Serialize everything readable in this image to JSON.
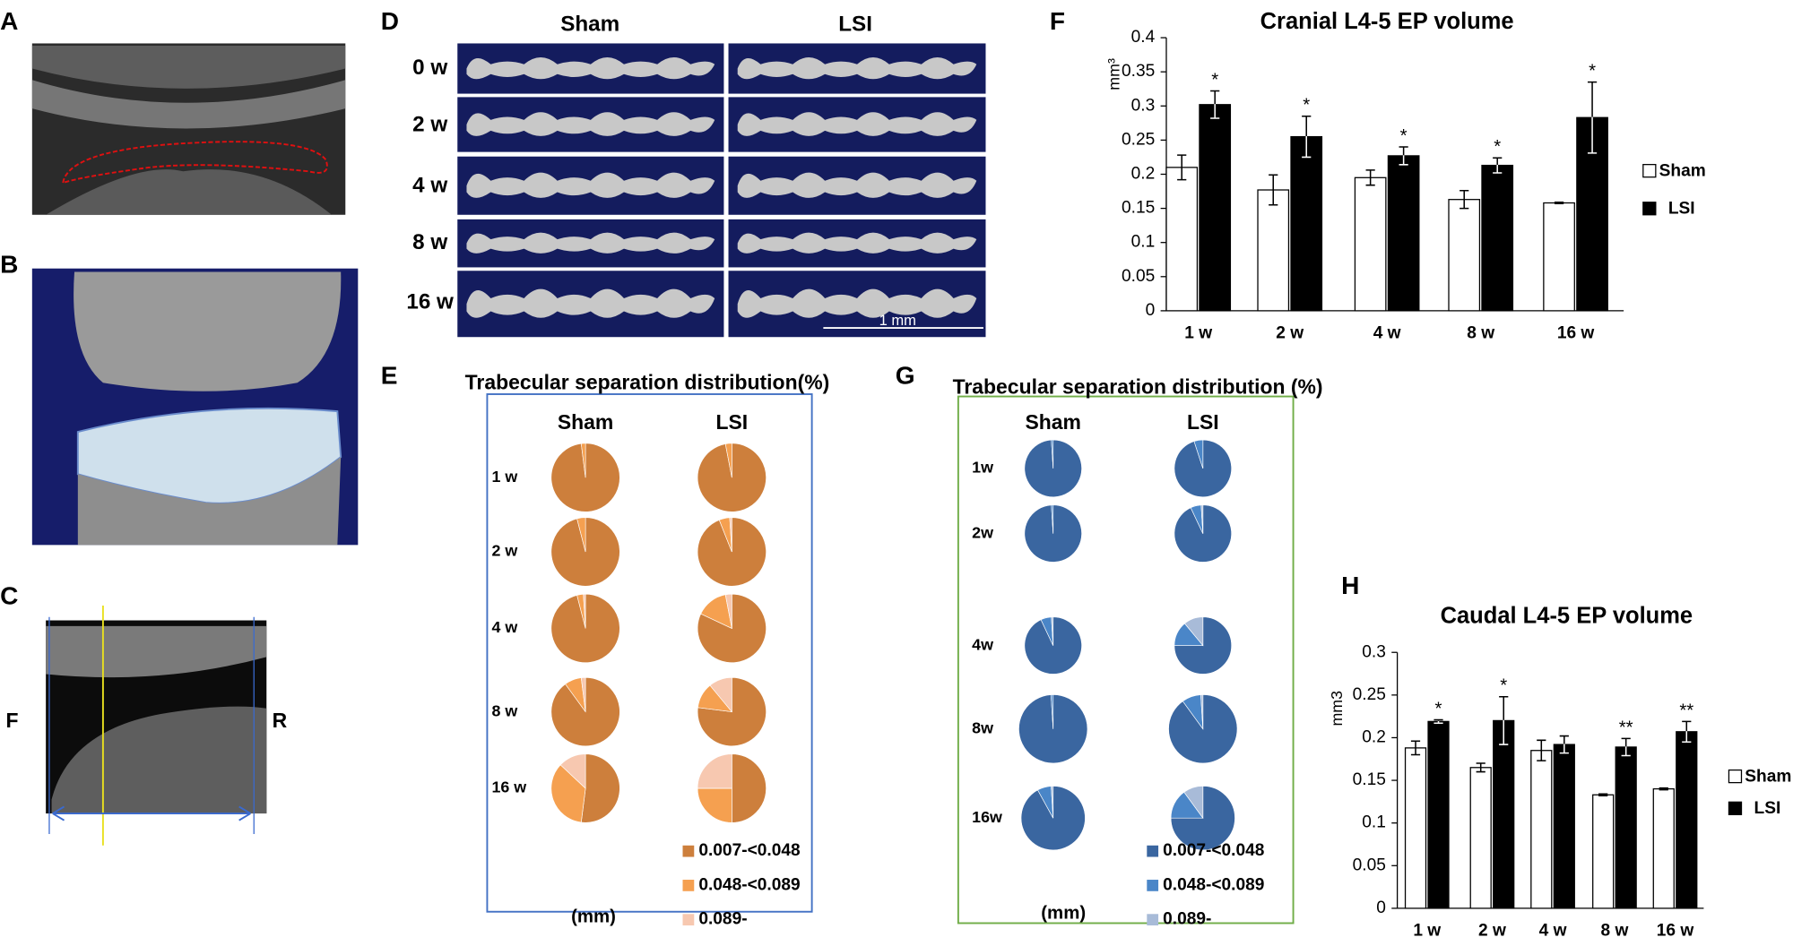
{
  "panel_labels": [
    "A",
    "B",
    "C",
    "D",
    "E",
    "F",
    "G",
    "H"
  ],
  "panel_c": {
    "left": "F",
    "right": "R"
  },
  "panel_d": {
    "columns": [
      "Sham",
      "LSI"
    ],
    "rows": [
      "0 w",
      "2 w",
      "4 w",
      "8 w",
      "16 w"
    ],
    "scale_bar": "1 mm"
  },
  "chart_data": [
    {
      "type": "bar",
      "title": "Cranial  L4-5 EP volume",
      "ylabel": "mm³",
      "categories": [
        "1 w",
        "2 w",
        "4 w",
        "8 w",
        "16 w"
      ],
      "series": [
        {
          "name": "Sham",
          "color": "#ffffff",
          "values": [
            0.21,
            0.177,
            0.195,
            0.163,
            0.158
          ],
          "errors": [
            0.018,
            0.022,
            0.011,
            0.013,
            0.001
          ]
        },
        {
          "name": "LSI",
          "color": "#000000",
          "values": [
            0.302,
            0.255,
            0.227,
            0.213,
            0.283
          ],
          "errors": [
            0.02,
            0.03,
            0.013,
            0.011,
            0.052
          ]
        }
      ],
      "annotations": [
        "*",
        "*",
        "*",
        "*",
        "*"
      ],
      "ylim": [
        0,
        0.4
      ],
      "yticks": [
        0,
        0.05,
        0.1,
        0.15,
        0.2,
        0.25,
        0.3,
        0.35,
        0.4
      ],
      "legend": "right"
    },
    {
      "type": "bar",
      "title": "Caudal L4-5 EP volume",
      "ylabel": "mm3",
      "categories": [
        "1 w",
        "2 w",
        "4 w",
        "8 w",
        "16 w"
      ],
      "series": [
        {
          "name": "Sham",
          "color": "#ffffff",
          "values": [
            0.188,
            0.165,
            0.185,
            0.133,
            0.14
          ],
          "errors": [
            0.008,
            0.005,
            0.012,
            0.001,
            0.001
          ]
        },
        {
          "name": "LSI",
          "color": "#000000",
          "values": [
            0.219,
            0.22,
            0.192,
            0.189,
            0.207
          ],
          "errors": [
            0.002,
            0.028,
            0.01,
            0.01,
            0.012
          ]
        }
      ],
      "annotations": [
        "*",
        "*",
        null,
        "**",
        "**"
      ],
      "ylim": [
        0,
        0.3
      ],
      "yticks": [
        0,
        0.05,
        0.1,
        0.15,
        0.2,
        0.25,
        0.3
      ],
      "legend": "right"
    },
    {
      "type": "pie",
      "title": "Trabecular separation distribution(%)",
      "columns": [
        "Sham",
        "LSI"
      ],
      "rows": [
        "1 w",
        "2 w",
        "4 w",
        "8 w",
        "16 w"
      ],
      "labels": [
        "0.007-<0.048",
        "0.048-<0.089",
        "0.089-"
      ],
      "colors": [
        "#cd7f3c",
        "#f5a050",
        "#f7c8b0"
      ],
      "unit": "(mm)",
      "values": [
        [
          [
            98,
            2,
            0
          ],
          [
            97,
            3,
            0
          ]
        ],
        [
          [
            96,
            4,
            0
          ],
          [
            94,
            5,
            1
          ]
        ],
        [
          [
            96,
            3,
            1
          ],
          [
            82,
            15,
            3
          ]
        ],
        [
          [
            90,
            8,
            2
          ],
          [
            77,
            12,
            11
          ]
        ],
        [
          [
            52,
            35,
            13
          ],
          [
            50,
            25,
            25
          ]
        ]
      ]
    },
    {
      "type": "pie",
      "title": "Trabecular separation distribution (%)",
      "columns": [
        "Sham",
        "LSI"
      ],
      "rows": [
        "1w",
        "2w",
        "4w",
        "8w",
        "16w"
      ],
      "labels": [
        "0.007-<0.048",
        "0.048-<0.089",
        "0.089-"
      ],
      "colors": [
        "#3a66a0",
        "#4a86c8",
        "#a8bbd8"
      ],
      "unit": "(mm)",
      "values": [
        [
          [
            99,
            1,
            0
          ],
          [
            95,
            5,
            0
          ]
        ],
        [
          [
            99,
            1,
            0
          ],
          [
            93,
            6,
            1
          ]
        ],
        [
          [
            93,
            6,
            1
          ],
          [
            75,
            14,
            11
          ]
        ],
        [
          [
            99,
            1,
            0
          ],
          [
            90,
            9,
            1
          ]
        ],
        [
          [
            92,
            7,
            1
          ],
          [
            75,
            15,
            10
          ]
        ]
      ]
    }
  ]
}
